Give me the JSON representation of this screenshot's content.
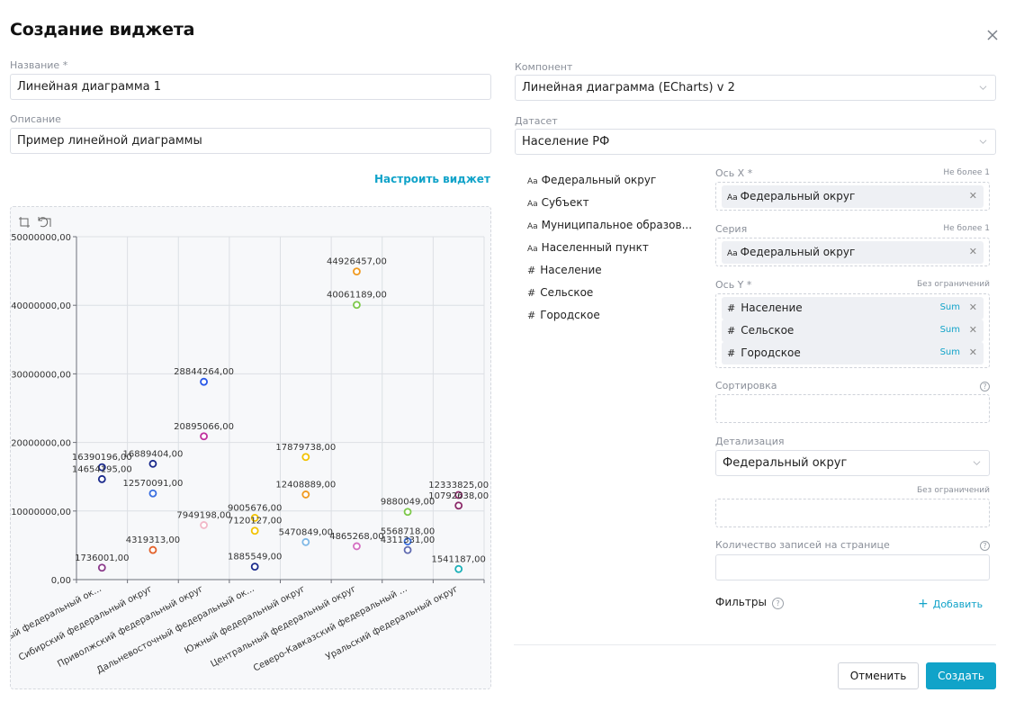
{
  "dialog": {
    "title": "Создание виджета"
  },
  "form": {
    "name_label": "Название *",
    "name_value": "Линейная диаграмма 1",
    "description_label": "Описание",
    "description_value": "Пример линейной диаграммы",
    "configure_link": "Настроить виджет",
    "component_label": "Компонент",
    "component_value": "Линейная диаграмма (ECharts) v 2",
    "dataset_label": "Датасет",
    "dataset_value": "Население РФ"
  },
  "fields": [
    {
      "type": "Aa",
      "label": "Федеральный округ"
    },
    {
      "type": "Aa",
      "label": "Субъект"
    },
    {
      "type": "Aa",
      "label": "Муниципальное образов..."
    },
    {
      "type": "Aa",
      "label": "Населенный пункт"
    },
    {
      "type": "#",
      "label": "Население"
    },
    {
      "type": "#",
      "label": "Сельское"
    },
    {
      "type": "#",
      "label": "Городское"
    }
  ],
  "config": {
    "x_axis": {
      "label": "Ось X *",
      "limit": "Не более 1",
      "chip_type": "Aa",
      "chip": "Федеральный округ"
    },
    "series": {
      "label": "Серия",
      "limit": "Не более 1",
      "chip_type": "Aa",
      "chip": "Федеральный округ"
    },
    "y_axis": {
      "label": "Ось Y *",
      "limit": "Без ограничений",
      "chips": [
        {
          "type": "#",
          "label": "Население",
          "agg": "Sum"
        },
        {
          "type": "#",
          "label": "Сельское",
          "agg": "Sum"
        },
        {
          "type": "#",
          "label": "Городское",
          "agg": "Sum"
        }
      ]
    },
    "sort_label": "Сортировка",
    "detail_label": "Детализация",
    "detail_value": "Федеральный округ",
    "detail_limit": "Без ограничений",
    "page_size_label": "Количество записей на странице",
    "filters_label": "Фильтры",
    "add_label": "Добавить"
  },
  "buttons": {
    "cancel": "Отменить",
    "create": "Создать"
  },
  "icons": {
    "close": "close-icon",
    "chevron": "chevron-down-icon",
    "help": "help-icon",
    "plus": "plus-icon",
    "zoom": "zoom-icon",
    "zoom_reset": "zoom-reset-icon"
  },
  "colors": {
    "accent": "#11a3c9"
  },
  "chart_data": {
    "type": "scatter",
    "categories": [
      "Северо-Западный федеральный ок...",
      "Сибирский федеральный округ",
      "Приволжский федеральный округ",
      "Дальневосточный федеральный ок...",
      "Южный федеральный округ",
      "Центральный федеральный округ",
      "Северо-Кавказский федеральный ...",
      "Уральский федеральный округ"
    ],
    "ylim": [
      0,
      50000000
    ],
    "yticks": [
      "0,00",
      "10000000,00",
      "20000000,00",
      "30000000,00",
      "40000000,00",
      "50000000,00"
    ],
    "points": [
      {
        "cat": 0,
        "value": 16390196,
        "label": "16390196,00",
        "color": "#1a2a8c"
      },
      {
        "cat": 0,
        "value": 14654195,
        "label": "14654195,00",
        "color": "#1a2a8c"
      },
      {
        "cat": 0,
        "value": 1736001,
        "label": "1736001,00",
        "color": "#8b3a8b"
      },
      {
        "cat": 1,
        "value": 16889404,
        "label": "16889404,00",
        "color": "#1a2a8c"
      },
      {
        "cat": 1,
        "value": 12570091,
        "label": "12570091,00",
        "color": "#3a6fe0"
      },
      {
        "cat": 1,
        "value": 4319313,
        "label": "4319313,00",
        "color": "#e3622c"
      },
      {
        "cat": 2,
        "value": 28844264,
        "label": "28844264,00",
        "color": "#2757e8"
      },
      {
        "cat": 2,
        "value": 20895066,
        "label": "20895066,00",
        "color": "#c0309e"
      },
      {
        "cat": 2,
        "value": 7949198,
        "label": "7949198,00",
        "color": "#f2b8c8"
      },
      {
        "cat": 3,
        "value": 9005676,
        "label": "9005676,00",
        "color": "#f2c200"
      },
      {
        "cat": 3,
        "value": 7120127,
        "label": "7120127,00",
        "color": "#f2c200"
      },
      {
        "cat": 3,
        "value": 1885549,
        "label": "1885549,00",
        "color": "#1a2a8c"
      },
      {
        "cat": 4,
        "value": 17879738,
        "label": "17879738,00",
        "color": "#f2c200"
      },
      {
        "cat": 4,
        "value": 12408889,
        "label": "12408889,00",
        "color": "#f09a20"
      },
      {
        "cat": 4,
        "value": 5470849,
        "label": "5470849,00",
        "color": "#7fb8e6"
      },
      {
        "cat": 5,
        "value": 44926457,
        "label": "44926457,00",
        "color": "#f09a20"
      },
      {
        "cat": 5,
        "value": 40061189,
        "label": "40061189,00",
        "color": "#7cc84a"
      },
      {
        "cat": 5,
        "value": 4865268,
        "label": "4865268,00",
        "color": "#d46fc2"
      },
      {
        "cat": 6,
        "value": 9880049,
        "label": "9880049,00",
        "color": "#7cc84a"
      },
      {
        "cat": 6,
        "value": 5568718,
        "label": "5568718,00",
        "color": "#3a6fe0"
      },
      {
        "cat": 6,
        "value": 4311331,
        "label": "4311331,00",
        "color": "#5f6ab0"
      },
      {
        "cat": 7,
        "value": 12333825,
        "label": "12333825,00",
        "color": "#8b2a6a"
      },
      {
        "cat": 7,
        "value": 10792638,
        "label": "10792638,00",
        "color": "#8b2a6a"
      },
      {
        "cat": 7,
        "value": 1541187,
        "label": "1541187,00",
        "color": "#1ab0b8"
      }
    ]
  }
}
